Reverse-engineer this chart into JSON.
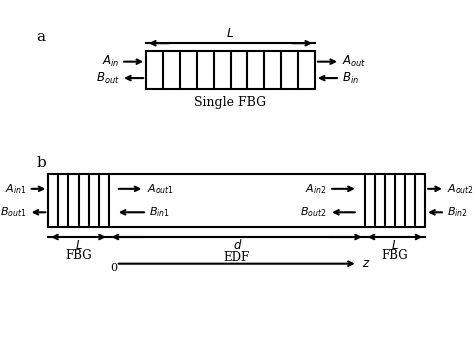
{
  "bg_color": "#ffffff",
  "line_color": "#000000",
  "panel_a_label": "a",
  "panel_b_label": "b",
  "single_fbg_label": "Single FBG",
  "fbg_label": "FBG",
  "edf_label": "EDF",
  "L_label": "L",
  "d_label": "d",
  "z_label": "z",
  "zero_label": "0"
}
